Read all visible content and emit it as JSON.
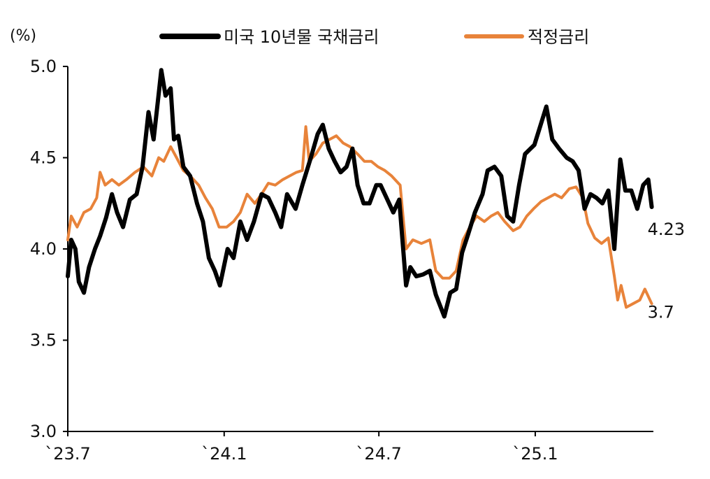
{
  "chart_data": {
    "type": "line",
    "unit_label": "(%)",
    "ylim": [
      3.0,
      5.0
    ],
    "y_ticks": [
      "3.0",
      "3.5",
      "4.0",
      "4.5",
      "5.0"
    ],
    "x_ticks": [
      "`23.7",
      "`24.1",
      "`24.7",
      "`25.1"
    ],
    "x_tick_dates": [
      "2023-07-01",
      "2024-01-01",
      "2024-07-01",
      "2025-01-01"
    ],
    "xlim": [
      "2023-07-01",
      "2025-05-20"
    ],
    "legend_position": "top",
    "series": [
      {
        "name": "미국 10년물 국채금리",
        "color": "#000000",
        "end_label": "4.23",
        "points": [
          [
            "2023-07-01",
            3.85
          ],
          [
            "2023-07-05",
            4.05
          ],
          [
            "2023-07-10",
            4.0
          ],
          [
            "2023-07-14",
            3.82
          ],
          [
            "2023-07-20",
            3.76
          ],
          [
            "2023-07-26",
            3.9
          ],
          [
            "2023-08-02",
            4.0
          ],
          [
            "2023-08-08",
            4.07
          ],
          [
            "2023-08-15",
            4.17
          ],
          [
            "2023-08-22",
            4.3
          ],
          [
            "2023-08-28",
            4.2
          ],
          [
            "2023-09-04",
            4.12
          ],
          [
            "2023-09-12",
            4.27
          ],
          [
            "2023-09-20",
            4.3
          ],
          [
            "2023-09-27",
            4.45
          ],
          [
            "2023-10-04",
            4.75
          ],
          [
            "2023-10-10",
            4.6
          ],
          [
            "2023-10-16",
            4.85
          ],
          [
            "2023-10-19",
            4.98
          ],
          [
            "2023-10-24",
            4.84
          ],
          [
            "2023-10-30",
            4.88
          ],
          [
            "2023-11-03",
            4.6
          ],
          [
            "2023-11-08",
            4.62
          ],
          [
            "2023-11-14",
            4.45
          ],
          [
            "2023-11-22",
            4.4
          ],
          [
            "2023-11-30",
            4.25
          ],
          [
            "2023-12-07",
            4.15
          ],
          [
            "2023-12-14",
            3.95
          ],
          [
            "2023-12-21",
            3.88
          ],
          [
            "2023-12-27",
            3.8
          ],
          [
            "2024-01-05",
            4.0
          ],
          [
            "2024-01-12",
            3.95
          ],
          [
            "2024-01-20",
            4.15
          ],
          [
            "2024-01-28",
            4.05
          ],
          [
            "2024-02-05",
            4.15
          ],
          [
            "2024-02-14",
            4.3
          ],
          [
            "2024-02-22",
            4.28
          ],
          [
            "2024-03-01",
            4.2
          ],
          [
            "2024-03-08",
            4.12
          ],
          [
            "2024-03-15",
            4.3
          ],
          [
            "2024-03-25",
            4.22
          ],
          [
            "2024-04-02",
            4.35
          ],
          [
            "2024-04-12",
            4.5
          ],
          [
            "2024-04-20",
            4.63
          ],
          [
            "2024-04-26",
            4.68
          ],
          [
            "2024-05-03",
            4.55
          ],
          [
            "2024-05-10",
            4.48
          ],
          [
            "2024-05-17",
            4.42
          ],
          [
            "2024-05-24",
            4.45
          ],
          [
            "2024-05-31",
            4.55
          ],
          [
            "2024-06-06",
            4.35
          ],
          [
            "2024-06-13",
            4.25
          ],
          [
            "2024-06-20",
            4.25
          ],
          [
            "2024-06-28",
            4.35
          ],
          [
            "2024-07-03",
            4.35
          ],
          [
            "2024-07-10",
            4.28
          ],
          [
            "2024-07-18",
            4.2
          ],
          [
            "2024-07-25",
            4.27
          ],
          [
            "2024-08-02",
            3.8
          ],
          [
            "2024-08-07",
            3.9
          ],
          [
            "2024-08-14",
            3.85
          ],
          [
            "2024-08-22",
            3.86
          ],
          [
            "2024-08-30",
            3.88
          ],
          [
            "2024-09-06",
            3.75
          ],
          [
            "2024-09-16",
            3.63
          ],
          [
            "2024-09-23",
            3.76
          ],
          [
            "2024-09-30",
            3.78
          ],
          [
            "2024-10-07",
            3.98
          ],
          [
            "2024-10-14",
            4.08
          ],
          [
            "2024-10-22",
            4.2
          ],
          [
            "2024-10-31",
            4.3
          ],
          [
            "2024-11-06",
            4.43
          ],
          [
            "2024-11-14",
            4.45
          ],
          [
            "2024-11-22",
            4.4
          ],
          [
            "2024-11-29",
            4.18
          ],
          [
            "2024-12-06",
            4.15
          ],
          [
            "2024-12-13",
            4.35
          ],
          [
            "2024-12-20",
            4.52
          ],
          [
            "2024-12-31",
            4.57
          ],
          [
            "2025-01-08",
            4.69
          ],
          [
            "2025-01-14",
            4.78
          ],
          [
            "2025-01-21",
            4.6
          ],
          [
            "2025-01-29",
            4.55
          ],
          [
            "2025-02-07",
            4.5
          ],
          [
            "2025-02-14",
            4.48
          ],
          [
            "2025-02-21",
            4.43
          ],
          [
            "2025-02-28",
            4.22
          ],
          [
            "2025-03-07",
            4.3
          ],
          [
            "2025-03-14",
            4.28
          ],
          [
            "2025-03-21",
            4.25
          ],
          [
            "2025-03-28",
            4.32
          ],
          [
            "2025-04-04",
            4.0
          ],
          [
            "2025-04-11",
            4.49
          ],
          [
            "2025-04-17",
            4.32
          ],
          [
            "2025-04-24",
            4.32
          ],
          [
            "2025-05-01",
            4.22
          ],
          [
            "2025-05-08",
            4.35
          ],
          [
            "2025-05-14",
            4.38
          ],
          [
            "2025-05-18",
            4.23
          ]
        ]
      },
      {
        "name": "적정금리",
        "color": "#E8833A",
        "end_label": "3.7",
        "points": [
          [
            "2023-07-01",
            4.05
          ],
          [
            "2023-07-05",
            4.18
          ],
          [
            "2023-07-12",
            4.12
          ],
          [
            "2023-07-20",
            4.2
          ],
          [
            "2023-07-28",
            4.22
          ],
          [
            "2023-08-04",
            4.28
          ],
          [
            "2023-08-08",
            4.42
          ],
          [
            "2023-08-14",
            4.35
          ],
          [
            "2023-08-22",
            4.38
          ],
          [
            "2023-08-30",
            4.35
          ],
          [
            "2023-09-08",
            4.38
          ],
          [
            "2023-09-18",
            4.42
          ],
          [
            "2023-09-28",
            4.45
          ],
          [
            "2023-10-08",
            4.4
          ],
          [
            "2023-10-16",
            4.5
          ],
          [
            "2023-10-22",
            4.48
          ],
          [
            "2023-10-30",
            4.56
          ],
          [
            "2023-11-06",
            4.5
          ],
          [
            "2023-11-14",
            4.43
          ],
          [
            "2023-11-22",
            4.4
          ],
          [
            "2023-12-02",
            4.35
          ],
          [
            "2023-12-10",
            4.28
          ],
          [
            "2023-12-18",
            4.22
          ],
          [
            "2023-12-26",
            4.12
          ],
          [
            "2024-01-04",
            4.12
          ],
          [
            "2024-01-12",
            4.15
          ],
          [
            "2024-01-20",
            4.2
          ],
          [
            "2024-01-28",
            4.3
          ],
          [
            "2024-02-06",
            4.25
          ],
          [
            "2024-02-14",
            4.3
          ],
          [
            "2024-02-22",
            4.36
          ],
          [
            "2024-03-01",
            4.35
          ],
          [
            "2024-03-10",
            4.38
          ],
          [
            "2024-03-18",
            4.4
          ],
          [
            "2024-03-26",
            4.42
          ],
          [
            "2024-04-02",
            4.43
          ],
          [
            "2024-04-06",
            4.67
          ],
          [
            "2024-04-10",
            4.48
          ],
          [
            "2024-04-18",
            4.52
          ],
          [
            "2024-04-26",
            4.58
          ],
          [
            "2024-05-04",
            4.6
          ],
          [
            "2024-05-12",
            4.62
          ],
          [
            "2024-05-20",
            4.58
          ],
          [
            "2024-05-28",
            4.56
          ],
          [
            "2024-06-06",
            4.52
          ],
          [
            "2024-06-14",
            4.48
          ],
          [
            "2024-06-22",
            4.48
          ],
          [
            "2024-06-30",
            4.45
          ],
          [
            "2024-07-08",
            4.43
          ],
          [
            "2024-07-16",
            4.4
          ],
          [
            "2024-07-26",
            4.35
          ],
          [
            "2024-08-02",
            4.0
          ],
          [
            "2024-08-10",
            4.05
          ],
          [
            "2024-08-20",
            4.03
          ],
          [
            "2024-08-30",
            4.05
          ],
          [
            "2024-09-06",
            3.88
          ],
          [
            "2024-09-14",
            3.84
          ],
          [
            "2024-09-22",
            3.84
          ],
          [
            "2024-09-30",
            3.88
          ],
          [
            "2024-10-08",
            4.05
          ],
          [
            "2024-10-16",
            4.12
          ],
          [
            "2024-10-24",
            4.18
          ],
          [
            "2024-11-02",
            4.15
          ],
          [
            "2024-11-10",
            4.18
          ],
          [
            "2024-11-18",
            4.2
          ],
          [
            "2024-11-26",
            4.15
          ],
          [
            "2024-12-06",
            4.1
          ],
          [
            "2024-12-14",
            4.12
          ],
          [
            "2024-12-22",
            4.18
          ],
          [
            "2024-12-30",
            4.22
          ],
          [
            "2025-01-08",
            4.26
          ],
          [
            "2025-01-16",
            4.28
          ],
          [
            "2025-01-24",
            4.3
          ],
          [
            "2025-02-01",
            4.28
          ],
          [
            "2025-02-10",
            4.33
          ],
          [
            "2025-02-18",
            4.34
          ],
          [
            "2025-02-26",
            4.28
          ],
          [
            "2025-03-04",
            4.14
          ],
          [
            "2025-03-12",
            4.06
          ],
          [
            "2025-03-20",
            4.03
          ],
          [
            "2025-03-28",
            4.06
          ],
          [
            "2025-04-04",
            3.85
          ],
          [
            "2025-04-08",
            3.72
          ],
          [
            "2025-04-12",
            3.8
          ],
          [
            "2025-04-18",
            3.68
          ],
          [
            "2025-04-26",
            3.7
          ],
          [
            "2025-05-04",
            3.72
          ],
          [
            "2025-05-10",
            3.78
          ],
          [
            "2025-05-18",
            3.7
          ]
        ]
      }
    ]
  }
}
